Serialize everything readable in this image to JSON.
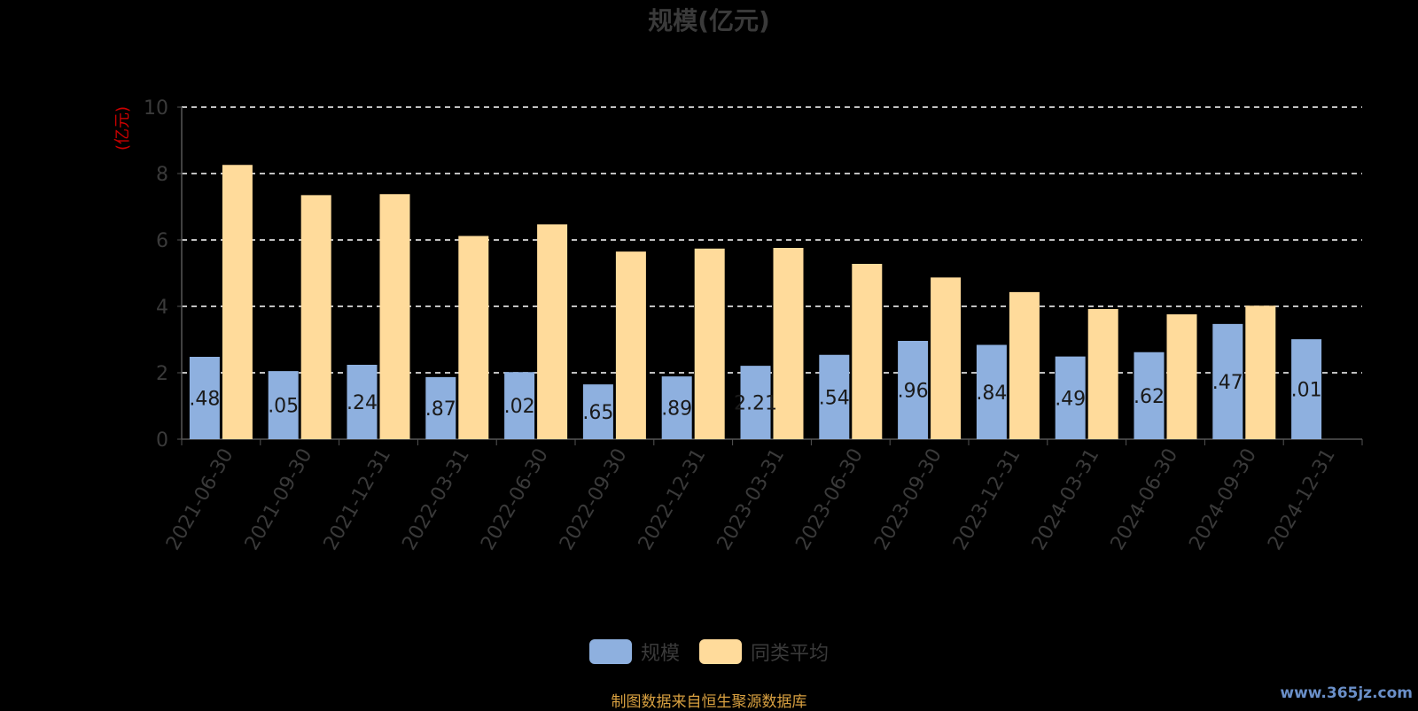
{
  "chart_data": {
    "type": "bar",
    "title": "规模(亿元)",
    "ylabel": "(亿元)",
    "xlabel": "",
    "ylim": [
      0,
      10
    ],
    "yticks": [
      0,
      2,
      4,
      6,
      8,
      10
    ],
    "grid": true,
    "legend_position": "bottom",
    "categories": [
      "2021-06-30",
      "2021-09-30",
      "2021-12-31",
      "2022-03-31",
      "2022-06-30",
      "2022-09-30",
      "2022-12-31",
      "2023-03-31",
      "2023-06-30",
      "2023-09-30",
      "2023-12-31",
      "2024-03-31",
      "2024-06-30",
      "2024-09-30",
      "2024-12-31"
    ],
    "series": [
      {
        "name": "规模",
        "color": "#8eb0df",
        "values": [
          2.48,
          2.05,
          2.24,
          1.87,
          2.02,
          1.65,
          1.89,
          2.21,
          2.54,
          2.96,
          2.84,
          2.49,
          2.62,
          3.47,
          3.01
        ],
        "data_labels": [
          ".48",
          ".05",
          ".24",
          ".87",
          ".02",
          ".65",
          ".89",
          "2.21",
          ".54",
          ".96",
          ".84",
          ".49",
          ".62",
          ".47",
          ".01"
        ]
      },
      {
        "name": "同类平均",
        "color": "#ffdb9b",
        "values": [
          8.26,
          7.35,
          7.38,
          6.12,
          6.47,
          5.65,
          5.74,
          5.76,
          5.28,
          4.87,
          4.43,
          3.92,
          3.76,
          4.02,
          null
        ]
      }
    ]
  },
  "footer": {
    "source_note": "制图数据来自恒生聚源数据库",
    "watermark": "www.365jz.com"
  }
}
